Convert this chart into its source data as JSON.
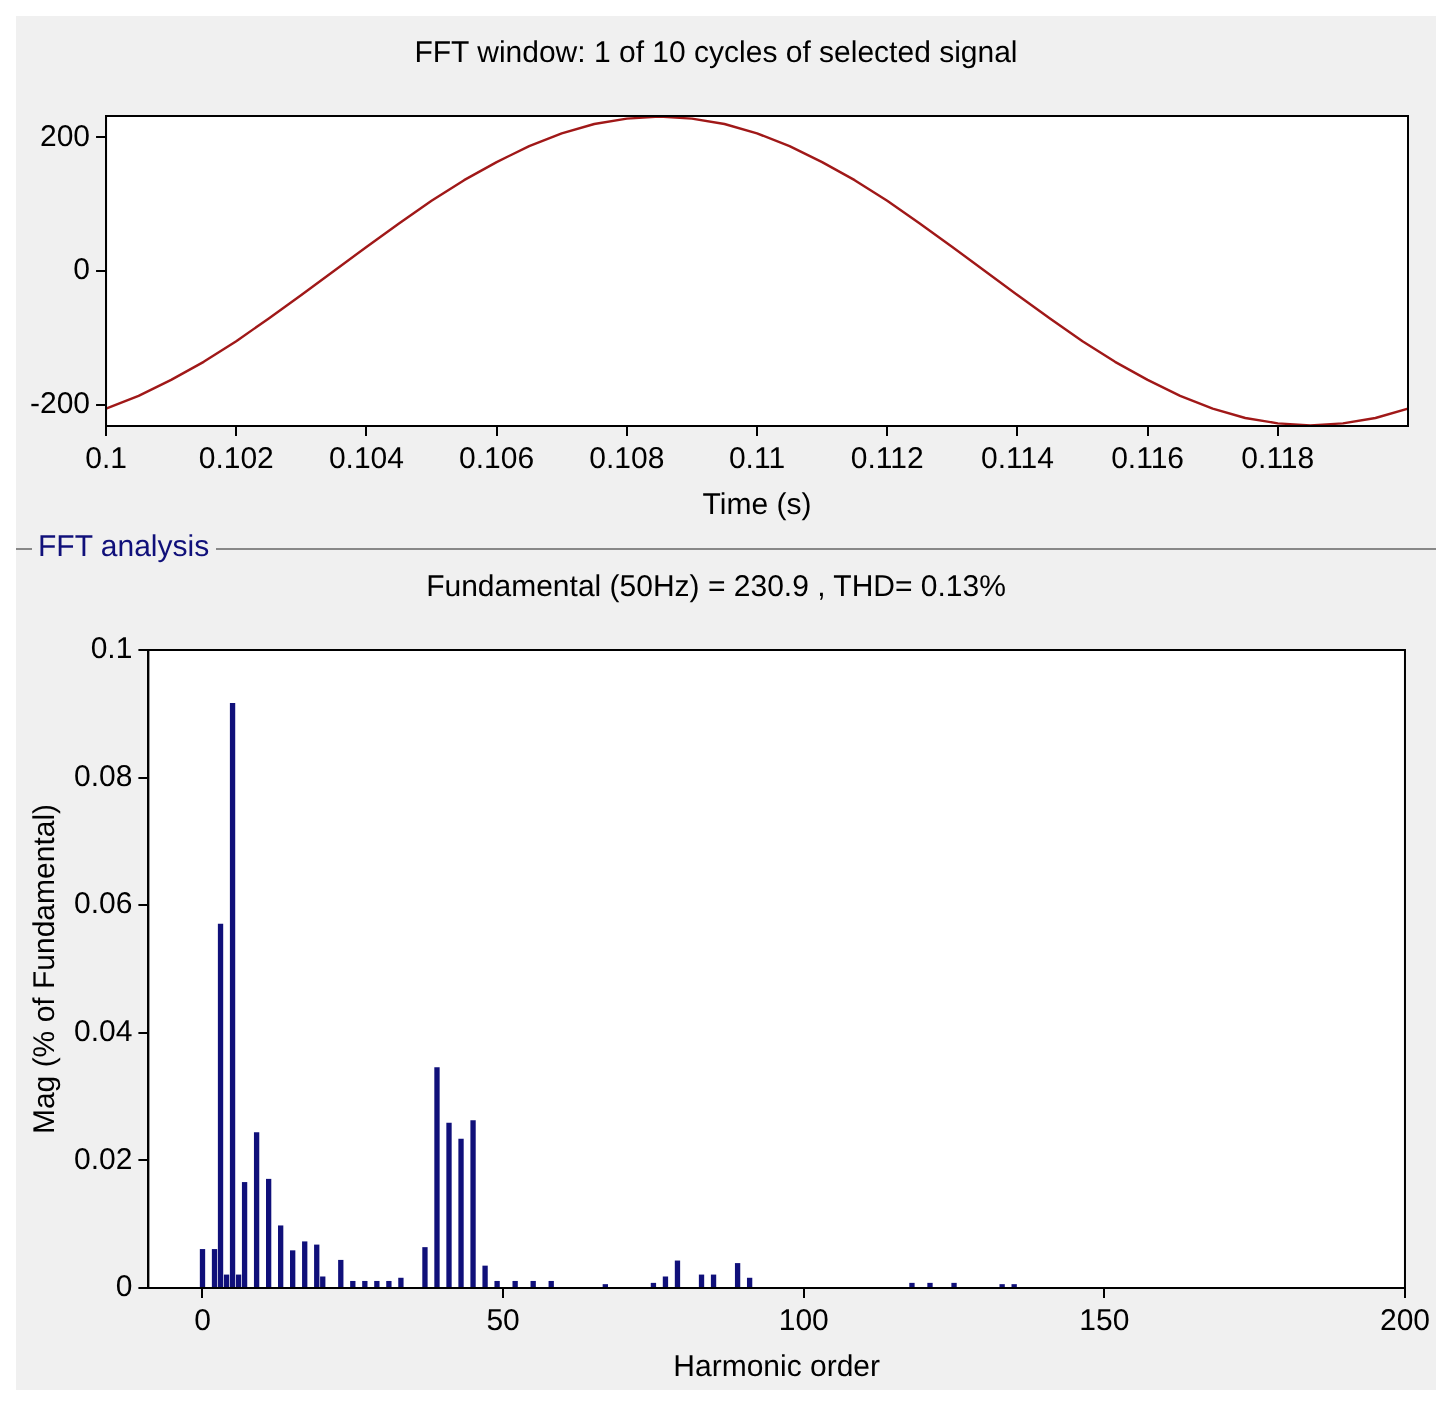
{
  "chart_data": [
    {
      "type": "line",
      "title": "FFT window: 1 of 10 cycles of selected signal",
      "xlabel": "Time (s)",
      "x": [
        0.1,
        0.1005,
        0.101,
        0.1015,
        0.102,
        0.1025,
        0.103,
        0.1035,
        0.104,
        0.1045,
        0.105,
        0.1055,
        0.106,
        0.1065,
        0.107,
        0.1075,
        0.108,
        0.1085,
        0.109,
        0.1095,
        0.11,
        0.1105,
        0.111,
        0.1115,
        0.112,
        0.1125,
        0.113,
        0.1135,
        0.114,
        0.1145,
        0.115,
        0.1155,
        0.116,
        0.1165,
        0.117,
        0.1175,
        0.118,
        0.1185,
        0.119,
        0.1195,
        0.12
      ],
      "series": [
        {
          "color": "#a01818",
          "values": [
            -206,
            -187,
            -163,
            -136,
            -105,
            -71,
            -36,
            0,
            36,
            71,
            105,
            136,
            163,
            187,
            206,
            220,
            228,
            231,
            228,
            220,
            206,
            187,
            163,
            136,
            105,
            71,
            36,
            0,
            -36,
            -71,
            -105,
            -136,
            -163,
            -187,
            -206,
            -220,
            -228,
            -231,
            -228,
            -220,
            -206
          ]
        }
      ],
      "xlim": [
        0.1,
        0.12
      ],
      "xticks": [
        0.1,
        0.102,
        0.104,
        0.106,
        0.108,
        0.11,
        0.112,
        0.114,
        0.116,
        0.118
      ],
      "ylim": [
        -232,
        232
      ],
      "yticks": [
        -200,
        0,
        200
      ],
      "marker": "none",
      "line_style": "solid"
    },
    {
      "type": "bar",
      "title": "Fundamental (50Hz) = 230.9 , THD= 0.13%",
      "xlabel": "Harmonic order",
      "ylabel": "Mag (% of Fundamental)",
      "annotations": [
        "FFT analysis"
      ],
      "x": [
        0,
        2,
        3,
        4,
        5,
        6,
        7,
        9,
        11,
        13,
        15,
        17,
        19,
        20,
        23,
        25,
        27,
        29,
        31,
        33,
        37,
        39,
        41,
        43,
        45,
        47,
        49,
        52,
        55,
        58,
        67,
        75,
        77,
        79,
        83,
        85,
        89,
        91,
        118,
        121,
        125,
        133,
        135
      ],
      "series": [
        {
          "color": "#10107a",
          "values": [
            0.006,
            0.006,
            0.057,
            0.002,
            0.0916,
            0.002,
            0.0165,
            0.0243,
            0.017,
            0.0097,
            0.0058,
            0.0072,
            0.0067,
            0.0017,
            0.0043,
            0.001,
            0.001,
            0.001,
            0.001,
            0.0015,
            0.0063,
            0.0345,
            0.0258,
            0.0233,
            0.0262,
            0.0034,
            0.001,
            0.001,
            0.001,
            0.001,
            0.0005,
            0.0007,
            0.0017,
            0.0042,
            0.002,
            0.002,
            0.0038,
            0.0015,
            0.0007,
            0.0007,
            0.0007,
            0.0005,
            0.0005
          ]
        }
      ],
      "xlim": [
        -9,
        200
      ],
      "xticks": [
        0,
        50,
        100,
        150,
        200
      ],
      "ylim": [
        0,
        0.1
      ],
      "yticks": [
        0,
        0.02,
        0.04,
        0.06,
        0.08,
        0.1
      ]
    }
  ]
}
